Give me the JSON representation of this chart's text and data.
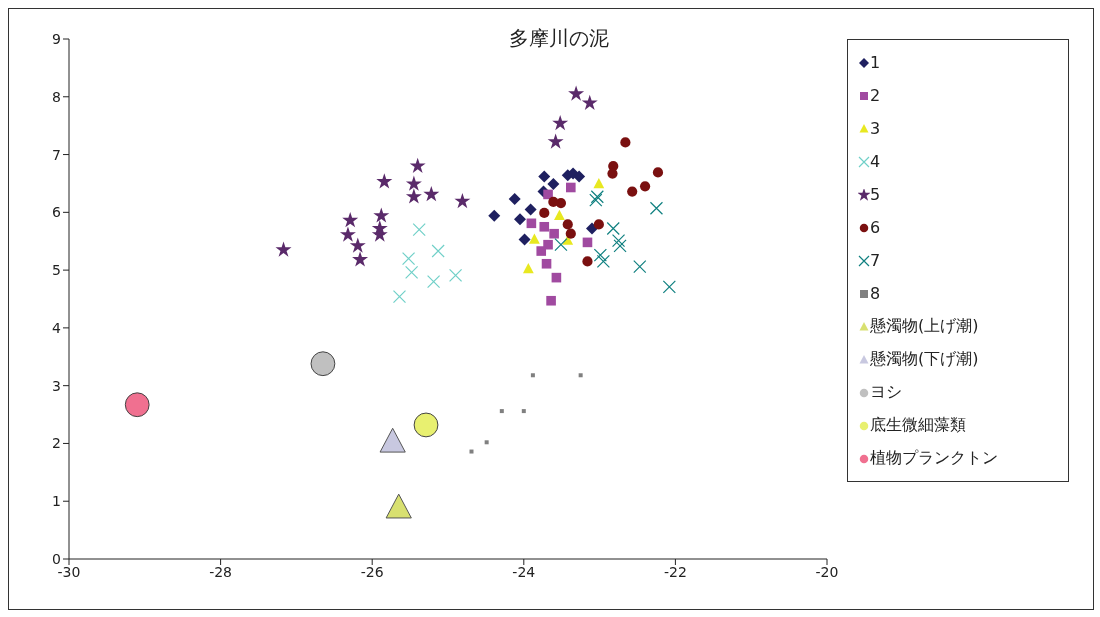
{
  "chart_data": {
    "type": "scatter",
    "title": "多摩川の泥",
    "xlim": [
      -30,
      -20
    ],
    "xticks": [
      -30,
      -28,
      -26,
      -24,
      -22,
      -20
    ],
    "ylim": [
      0,
      9
    ],
    "yticks": [
      0,
      1,
      2,
      3,
      4,
      5,
      6,
      7,
      8,
      9
    ],
    "grid": false,
    "legend": "right",
    "series": [
      {
        "name": "1",
        "color": "#1f2060",
        "marker": "diamond",
        "x": [
          -24.39,
          -24.12,
          -23.91,
          -23.99,
          -24.05,
          -23.73,
          -23.61,
          -23.42,
          -23.35,
          -23.27,
          -23.74,
          -23.1
        ],
        "values": [
          5.94,
          6.23,
          6.05,
          5.53,
          5.88,
          6.62,
          6.49,
          6.64,
          6.67,
          6.62,
          6.36,
          5.72
        ]
      },
      {
        "name": "2",
        "color": "#a04aa0",
        "marker": "square",
        "x": [
          -23.38,
          -23.68,
          -23.9,
          -23.73,
          -23.68,
          -23.77,
          -23.7,
          -23.57,
          -23.64,
          -23.16,
          -23.6
        ],
        "values": [
          6.43,
          6.31,
          5.81,
          5.75,
          5.44,
          5.33,
          5.11,
          4.87,
          4.47,
          5.48,
          5.63
        ]
      },
      {
        "name": "3",
        "color": "#e8e820",
        "marker": "triangle",
        "x": [
          -23.01,
          -23.86,
          -23.94,
          -23.53,
          -23.42
        ],
        "values": [
          6.49,
          5.53,
          5.02,
          5.94,
          5.51
        ]
      },
      {
        "name": "4",
        "color": "#70d0c8",
        "marker": "cross",
        "x": [
          -25.38,
          -25.13,
          -25.52,
          -25.48,
          -25.19,
          -24.9,
          -25.64
        ],
        "values": [
          5.7,
          5.33,
          5.2,
          4.96,
          4.8,
          4.91,
          4.54
        ]
      },
      {
        "name": "5",
        "color": "#5a2a6a",
        "marker": "star",
        "x": [
          -27.17,
          -25.84,
          -25.4,
          -25.45,
          -25.45,
          -25.22,
          -24.81,
          -26.29,
          -26.32,
          -26.19,
          -26.16,
          -25.88,
          -25.9,
          -25.9,
          -23.31,
          -23.13,
          -23.52,
          -23.58
        ],
        "values": [
          5.35,
          6.53,
          6.8,
          6.49,
          6.27,
          6.31,
          6.19,
          5.86,
          5.61,
          5.42,
          5.18,
          5.94,
          5.72,
          5.61,
          8.05,
          7.89,
          7.54,
          7.22
        ]
      },
      {
        "name": "6",
        "color": "#7a1010",
        "marker": "circle",
        "x": [
          -22.66,
          -22.82,
          -22.83,
          -22.57,
          -22.4,
          -22.23,
          -23.51,
          -23.73,
          -23.42,
          -23.01,
          -23.16,
          -23.38,
          -23.61
        ],
        "values": [
          7.21,
          6.8,
          6.67,
          6.36,
          6.45,
          6.69,
          6.16,
          5.99,
          5.79,
          5.79,
          5.15,
          5.63,
          6.18
        ]
      },
      {
        "name": "7",
        "color": "#108080",
        "marker": "cross",
        "x": [
          -23.05,
          -23.03,
          -22.82,
          -22.73,
          -22.75,
          -22.99,
          -22.95,
          -22.47,
          -22.25,
          -22.08,
          -23.51
        ],
        "values": [
          6.21,
          6.27,
          5.72,
          5.42,
          5.51,
          5.26,
          5.15,
          5.06,
          6.07,
          4.71,
          5.44
        ]
      },
      {
        "name": "8",
        "color": "#808080",
        "marker": "square",
        "x": [
          -24.69,
          -24.49,
          -24.29,
          -24.0,
          -23.88,
          -23.25
        ],
        "values": [
          1.86,
          2.02,
          2.56,
          2.56,
          3.18,
          3.18
        ]
      },
      {
        "name": "懸濁物(上げ潮)",
        "color": "#d8e070",
        "marker": "triangle",
        "x": [
          -25.65
        ],
        "values": [
          0.88
        ]
      },
      {
        "name": "懸濁物(下げ潮)",
        "color": "#c8c8e0",
        "marker": "triangle",
        "x": [
          -25.73
        ],
        "values": [
          2.02
        ]
      },
      {
        "name": "ヨシ",
        "color": "#c0c0c0",
        "marker": "circle",
        "x": [
          -26.65
        ],
        "values": [
          3.38
        ]
      },
      {
        "name": "底生微細藻類",
        "color": "#e8f070",
        "marker": "circle",
        "x": [
          -25.29
        ],
        "values": [
          2.32
        ]
      },
      {
        "name": "植物プランクトン",
        "color": "#f07090",
        "marker": "circle",
        "x": [
          -29.1
        ],
        "values": [
          2.67
        ]
      }
    ]
  }
}
